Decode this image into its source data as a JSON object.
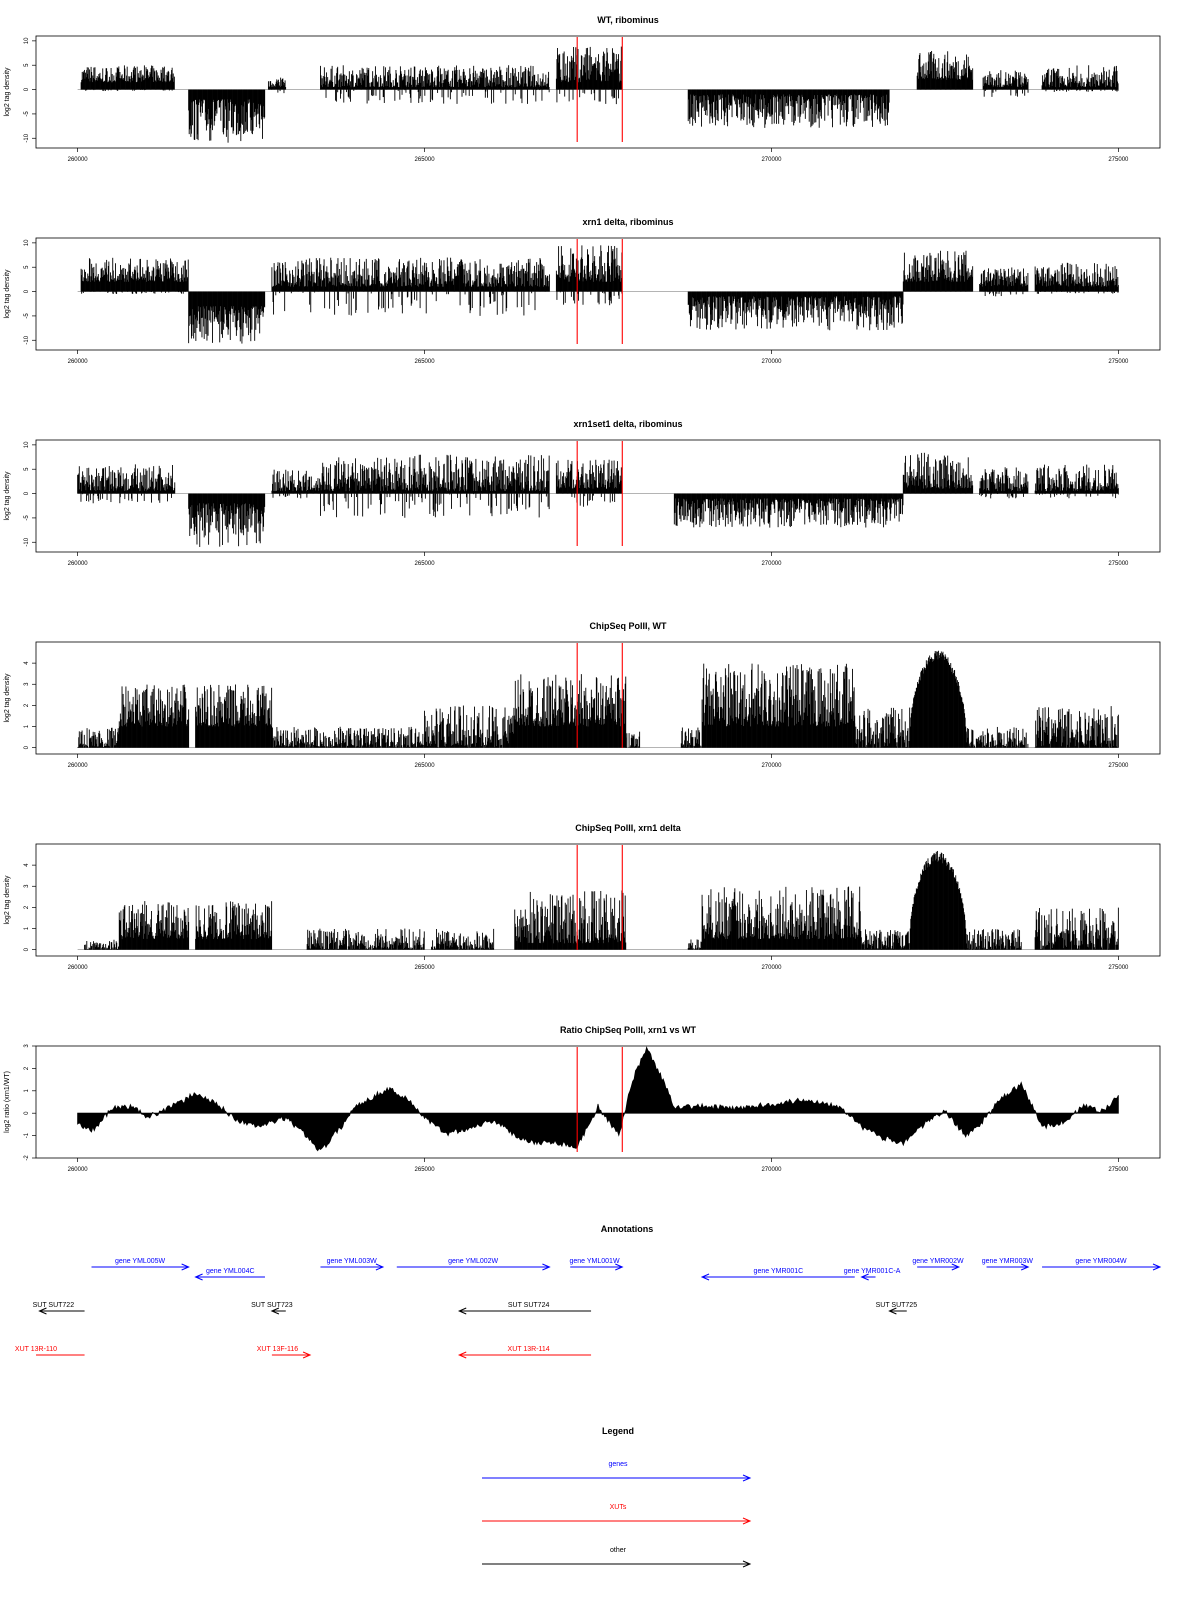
{
  "colors": {
    "gene": "#0000ff",
    "xut": "#ff0000",
    "other": "#000000",
    "marker": "#ff0000",
    "signal": "#000000",
    "baseline": "#888888"
  },
  "marker_positions": [
    267200,
    267850
  ],
  "chart_data": [
    {
      "type": "bar",
      "title": "WT, ribominus",
      "ylabel": "log2 tag density",
      "xlim": [
        260000,
        275000
      ],
      "ylim": [
        -12,
        11
      ],
      "xticks": [
        "260000",
        "265000",
        "270000",
        "275000"
      ],
      "xtick_values": [
        260000,
        265000,
        270000,
        275000
      ],
      "yticks": [
        "10",
        "5",
        "0",
        "-5",
        "-10"
      ],
      "ytick_values": [
        10,
        5,
        0,
        -5,
        -10
      ],
      "baseline": 0,
      "segments": [
        {
          "from": 260050,
          "to": 261400,
          "min": 1.5,
          "max": 5,
          "level": 3,
          "neg": 0.3
        },
        {
          "from": 261600,
          "to": 262700,
          "min": -11,
          "max": -2,
          "level": -6,
          "neg": 0
        },
        {
          "from": 262750,
          "to": 263000,
          "min": 0.5,
          "max": 3,
          "level": 1,
          "neg": 1
        },
        {
          "from": 263500,
          "to": 266800,
          "min": 0.5,
          "max": 5,
          "level": 2.5,
          "neg": 3
        },
        {
          "from": 266900,
          "to": 267850,
          "min": 1.5,
          "max": 9,
          "level": 4.5,
          "neg": 3
        },
        {
          "from": 268800,
          "to": 271700,
          "min": -8,
          "max": -1,
          "level": -4,
          "neg": 0
        },
        {
          "from": 272100,
          "to": 272900,
          "min": 2,
          "max": 8,
          "level": 5,
          "neg": 0
        },
        {
          "from": 273050,
          "to": 273700,
          "min": 0.5,
          "max": 4,
          "level": 2,
          "neg": 1.5
        },
        {
          "from": 273900,
          "to": 275000,
          "min": 0.5,
          "max": 5,
          "level": 3,
          "neg": 0.5
        }
      ]
    },
    {
      "type": "bar",
      "title": "xrn1 delta, ribominus",
      "ylabel": "log2 tag density",
      "xlim": [
        260000,
        275000
      ],
      "ylim": [
        -12,
        11
      ],
      "xticks": [
        "260000",
        "265000",
        "270000",
        "275000"
      ],
      "xtick_values": [
        260000,
        265000,
        270000,
        275000
      ],
      "yticks": [
        "10",
        "5",
        "0",
        "-5",
        "-10"
      ],
      "ytick_values": [
        10,
        5,
        0,
        -5,
        -10
      ],
      "baseline": 0,
      "segments": [
        {
          "from": 260050,
          "to": 261600,
          "min": 2,
          "max": 7,
          "level": 4.5,
          "neg": 0.5
        },
        {
          "from": 261600,
          "to": 262700,
          "min": -11,
          "max": -3,
          "level": -7,
          "neg": 0
        },
        {
          "from": 262800,
          "to": 266800,
          "min": 1,
          "max": 7,
          "level": 3.5,
          "neg": 5
        },
        {
          "from": 266900,
          "to": 267850,
          "min": 2,
          "max": 9.5,
          "level": 5,
          "neg": 3
        },
        {
          "from": 268800,
          "to": 271900,
          "min": -8,
          "max": -1,
          "level": -4.5,
          "neg": 0
        },
        {
          "from": 271900,
          "to": 272900,
          "min": 2,
          "max": 8.5,
          "level": 5,
          "neg": 0
        },
        {
          "from": 273000,
          "to": 273700,
          "min": 1,
          "max": 5,
          "level": 3,
          "neg": 1
        },
        {
          "from": 273800,
          "to": 275000,
          "min": 1,
          "max": 6,
          "level": 3.5,
          "neg": 0.5
        }
      ]
    },
    {
      "type": "bar",
      "title": "xrn1set1 delta, ribominus",
      "ylabel": "log2 tag density",
      "xlim": [
        260000,
        275000
      ],
      "ylim": [
        -12,
        11
      ],
      "xticks": [
        "260000",
        "265000",
        "270000",
        "275000"
      ],
      "xtick_values": [
        260000,
        265000,
        270000,
        275000
      ],
      "yticks": [
        "10",
        "5",
        "0",
        "-5",
        "-10"
      ],
      "ytick_values": [
        10,
        5,
        0,
        -5,
        -10
      ],
      "baseline": 0,
      "segments": [
        {
          "from": 260000,
          "to": 261400,
          "min": 0.5,
          "max": 6,
          "level": 2.5,
          "neg": 2
        },
        {
          "from": 261600,
          "to": 262700,
          "min": -11,
          "max": -2,
          "level": -5.5,
          "neg": 0
        },
        {
          "from": 262800,
          "to": 263500,
          "min": 0.5,
          "max": 5,
          "level": 2.5,
          "neg": 1
        },
        {
          "from": 263500,
          "to": 266800,
          "min": 0.5,
          "max": 8,
          "level": 3,
          "neg": 5
        },
        {
          "from": 266900,
          "to": 267850,
          "min": 1,
          "max": 7,
          "level": 4,
          "neg": 3
        },
        {
          "from": 268600,
          "to": 271900,
          "min": -7,
          "max": -1,
          "level": -3,
          "neg": 0
        },
        {
          "from": 271900,
          "to": 272900,
          "min": 1,
          "max": 8.5,
          "level": 4.5,
          "neg": 0
        },
        {
          "from": 273000,
          "to": 273700,
          "min": 0.5,
          "max": 5.5,
          "level": 2.5,
          "neg": 1
        },
        {
          "from": 273800,
          "to": 275000,
          "min": 0.5,
          "max": 6,
          "level": 3,
          "neg": 1
        }
      ]
    },
    {
      "type": "bar",
      "title": "ChipSeq PolII, WT",
      "ylabel": "log2 tag density",
      "xlim": [
        260000,
        275000
      ],
      "ylim": [
        -0.3,
        5
      ],
      "xticks": [
        "260000",
        "265000",
        "270000",
        "275000"
      ],
      "xtick_values": [
        260000,
        265000,
        270000,
        275000
      ],
      "yticks": [
        "4",
        "3",
        "2",
        "1",
        "0"
      ],
      "ytick_values": [
        4,
        3,
        2,
        1,
        0
      ],
      "baseline": 0,
      "segments": [
        {
          "from": 260000,
          "to": 260600,
          "min": 0,
          "max": 1,
          "level": 0.5,
          "neg": 0
        },
        {
          "from": 260600,
          "to": 261600,
          "min": 1,
          "max": 3,
          "level": 1.5,
          "neg": 0
        },
        {
          "from": 261700,
          "to": 262800,
          "min": 1,
          "max": 3,
          "level": 1.5,
          "neg": 0
        },
        {
          "from": 262800,
          "to": 265000,
          "min": 0,
          "max": 1,
          "level": 0.7,
          "neg": 0
        },
        {
          "from": 265000,
          "to": 266300,
          "min": 0,
          "max": 2,
          "level": 1,
          "neg": 0
        },
        {
          "from": 266300,
          "to": 267900,
          "min": 1,
          "max": 3.5,
          "level": 2,
          "neg": 0
        },
        {
          "from": 267900,
          "to": 268100,
          "min": 0,
          "max": 1,
          "level": 0.5,
          "neg": 0
        },
        {
          "from": 268700,
          "to": 269000,
          "min": 0,
          "max": 1,
          "level": 0.5,
          "neg": 0
        },
        {
          "from": 269000,
          "to": 271200,
          "min": 1,
          "max": 4,
          "level": 2,
          "neg": 0
        },
        {
          "from": 271200,
          "to": 272000,
          "min": 0,
          "max": 2,
          "level": 1,
          "neg": 0
        },
        {
          "from": 272000,
          "to": 272800,
          "min": 1,
          "max": 4.7,
          "level": 4.7,
          "neg": 0,
          "hump": true
        },
        {
          "from": 272800,
          "to": 273700,
          "min": 0,
          "max": 1,
          "level": 0.5,
          "neg": 0
        },
        {
          "from": 273800,
          "to": 275000,
          "min": 0,
          "max": 2,
          "level": 1,
          "neg": 0
        }
      ]
    },
    {
      "type": "bar",
      "title": "ChipSeq PolII, xrn1 delta",
      "ylabel": "log2 tag density",
      "xlim": [
        260000,
        275000
      ],
      "ylim": [
        -0.3,
        5
      ],
      "xticks": [
        "260000",
        "265000",
        "270000",
        "275000"
      ],
      "xtick_values": [
        260000,
        265000,
        270000,
        275000
      ],
      "yticks": [
        "4",
        "3",
        "2",
        "1",
        "0"
      ],
      "ytick_values": [
        4,
        3,
        2,
        1,
        0
      ],
      "baseline": 0,
      "segments": [
        {
          "from": 260100,
          "to": 260600,
          "min": 0,
          "max": 0.5,
          "level": 0.2,
          "neg": 0
        },
        {
          "from": 260600,
          "to": 261600,
          "min": 0.5,
          "max": 2.3,
          "level": 1.2,
          "neg": 0
        },
        {
          "from": 261700,
          "to": 262800,
          "min": 0.5,
          "max": 2.3,
          "level": 1.2,
          "neg": 0
        },
        {
          "from": 263300,
          "to": 265000,
          "min": 0,
          "max": 1,
          "level": 0.5,
          "neg": 0
        },
        {
          "from": 265100,
          "to": 266000,
          "min": 0,
          "max": 1,
          "level": 0.5,
          "neg": 0
        },
        {
          "from": 266300,
          "to": 267900,
          "min": 0.3,
          "max": 2.8,
          "level": 1.5,
          "neg": 0
        },
        {
          "from": 268800,
          "to": 269000,
          "min": 0,
          "max": 0.5,
          "level": 0.3,
          "neg": 0
        },
        {
          "from": 269000,
          "to": 271300,
          "min": 0.5,
          "max": 3,
          "level": 1.8,
          "neg": 0
        },
        {
          "from": 271300,
          "to": 272000,
          "min": 0,
          "max": 1,
          "level": 0.5,
          "neg": 0
        },
        {
          "from": 272000,
          "to": 272800,
          "min": 1,
          "max": 4.7,
          "level": 4.7,
          "neg": 0,
          "hump": true
        },
        {
          "from": 272800,
          "to": 273600,
          "min": 0,
          "max": 1,
          "level": 0.5,
          "neg": 0
        },
        {
          "from": 273800,
          "to": 275000,
          "min": 0,
          "max": 2,
          "level": 1,
          "neg": 0
        }
      ]
    },
    {
      "type": "area",
      "title": "Ratio ChipSeq PolII, xrn1 vs WT",
      "ylabel": "log2 ratio (xrn1/WT)",
      "xlim": [
        260000,
        275000
      ],
      "ylim": [
        -2,
        3
      ],
      "xticks": [
        "260000",
        "265000",
        "270000",
        "275000"
      ],
      "xtick_values": [
        260000,
        265000,
        270000,
        275000
      ],
      "yticks": [
        "3",
        "2",
        "1",
        "0",
        "-1",
        "-2"
      ],
      "ytick_values": [
        3,
        2,
        1,
        0,
        -1,
        -2
      ],
      "baseline": 0,
      "x": [
        260000,
        260200,
        260500,
        260800,
        261000,
        261200,
        261500,
        261700,
        262000,
        262300,
        262600,
        263000,
        263300,
        263500,
        263800,
        264000,
        264300,
        264500,
        264800,
        265000,
        265300,
        265600,
        266000,
        266300,
        266600,
        266900,
        267200,
        267500,
        267800,
        268000,
        268200,
        268400,
        268600,
        268800,
        269000,
        269500,
        270000,
        270500,
        271000,
        271300,
        271600,
        271900,
        272200,
        272500,
        272800,
        273000,
        273300,
        273600,
        273900,
        274200,
        274500,
        274800,
        275000
      ],
      "values": [
        -0.5,
        -0.8,
        0.2,
        0.3,
        -0.2,
        0.1,
        0.5,
        0.9,
        0.4,
        -0.3,
        -0.6,
        -0.2,
        -1.0,
        -1.7,
        -0.6,
        0.3,
        0.8,
        1.1,
        0.5,
        -0.2,
        -0.9,
        -0.7,
        -0.3,
        -1.0,
        -1.3,
        -1.3,
        -1.5,
        0.3,
        -1.0,
        1.5,
        2.9,
        1.7,
        0.3,
        0.3,
        0.3,
        0.2,
        0.4,
        0.6,
        0.3,
        -0.6,
        -1.1,
        -1.3,
        -0.5,
        0.1,
        -1.0,
        -0.5,
        0.6,
        1.3,
        -0.6,
        -0.4,
        0.3,
        0.1,
        0.8
      ]
    }
  ],
  "annotations": {
    "title": "Annotations",
    "xlim": [
      260000,
      275000
    ],
    "rows": [
      [
        {
          "label": "gene YML005W",
          "kind": "gene",
          "from": 260200,
          "to": 261600,
          "dir": "right",
          "label_at": 260900
        },
        {
          "label": "gene YML004C",
          "kind": "gene",
          "from": 261700,
          "to": 262700,
          "dir": "left",
          "label_at": 262200
        },
        {
          "label": "gene YML003W",
          "kind": "gene",
          "from": 263500,
          "to": 264400,
          "dir": "right",
          "label_at": 263950
        },
        {
          "label": "gene YML002W",
          "kind": "gene",
          "from": 264600,
          "to": 266800,
          "dir": "right",
          "label_at": 265700
        },
        {
          "label": "gene YML001W",
          "kind": "gene",
          "from": 267100,
          "to": 267850,
          "dir": "right",
          "label_at": 267450
        },
        {
          "label": "gene YMR001C",
          "kind": "gene",
          "from": 269000,
          "to": 271200,
          "dir": "left",
          "label_at": 270100
        },
        {
          "label": "gene YMR001C-A",
          "kind": "gene",
          "from": 271300,
          "to": 271500,
          "dir": "left",
          "label_at": 271450
        },
        {
          "label": "gene YMR002W",
          "kind": "gene",
          "from": 272100,
          "to": 272700,
          "dir": "right",
          "label_at": 272400
        },
        {
          "label": "gene YMR003W",
          "kind": "gene",
          "from": 273100,
          "to": 273700,
          "dir": "right",
          "label_at": 273400
        },
        {
          "label": "gene YMR004W",
          "kind": "gene",
          "from": 273900,
          "to": 275600,
          "dir": "right",
          "label_at": 274750
        }
      ],
      [
        {
          "label": "SUT SUT722",
          "kind": "other",
          "from": 259450,
          "to": 260100,
          "dir": "left",
          "label_at": 259650
        },
        {
          "label": "SUT SUT723",
          "kind": "other",
          "from": 262800,
          "to": 263000,
          "dir": "left",
          "label_at": 262800
        },
        {
          "label": "SUT SUT724",
          "kind": "other",
          "from": 265500,
          "to": 267400,
          "dir": "left",
          "label_at": 266500
        },
        {
          "label": "SUT SUT725",
          "kind": "other",
          "from": 271700,
          "to": 271950,
          "dir": "left",
          "label_at": 271800
        }
      ],
      [
        {
          "label": "XUT 13R-110",
          "kind": "xut",
          "from": 259400,
          "to": 260100,
          "dir": "none",
          "label_at": 259400
        },
        {
          "label": "XUT 13F-116",
          "kind": "xut",
          "from": 262800,
          "to": 263350,
          "dir": "right",
          "label_at": 262880
        },
        {
          "label": "XUT 13R-114",
          "kind": "xut",
          "from": 265500,
          "to": 267400,
          "dir": "left",
          "label_at": 266500
        }
      ]
    ]
  },
  "legend": {
    "title": "Legend",
    "items": [
      {
        "label": "genes",
        "kind": "gene"
      },
      {
        "label": "XUTs",
        "kind": "xut"
      },
      {
        "label": "other",
        "kind": "other"
      }
    ]
  }
}
